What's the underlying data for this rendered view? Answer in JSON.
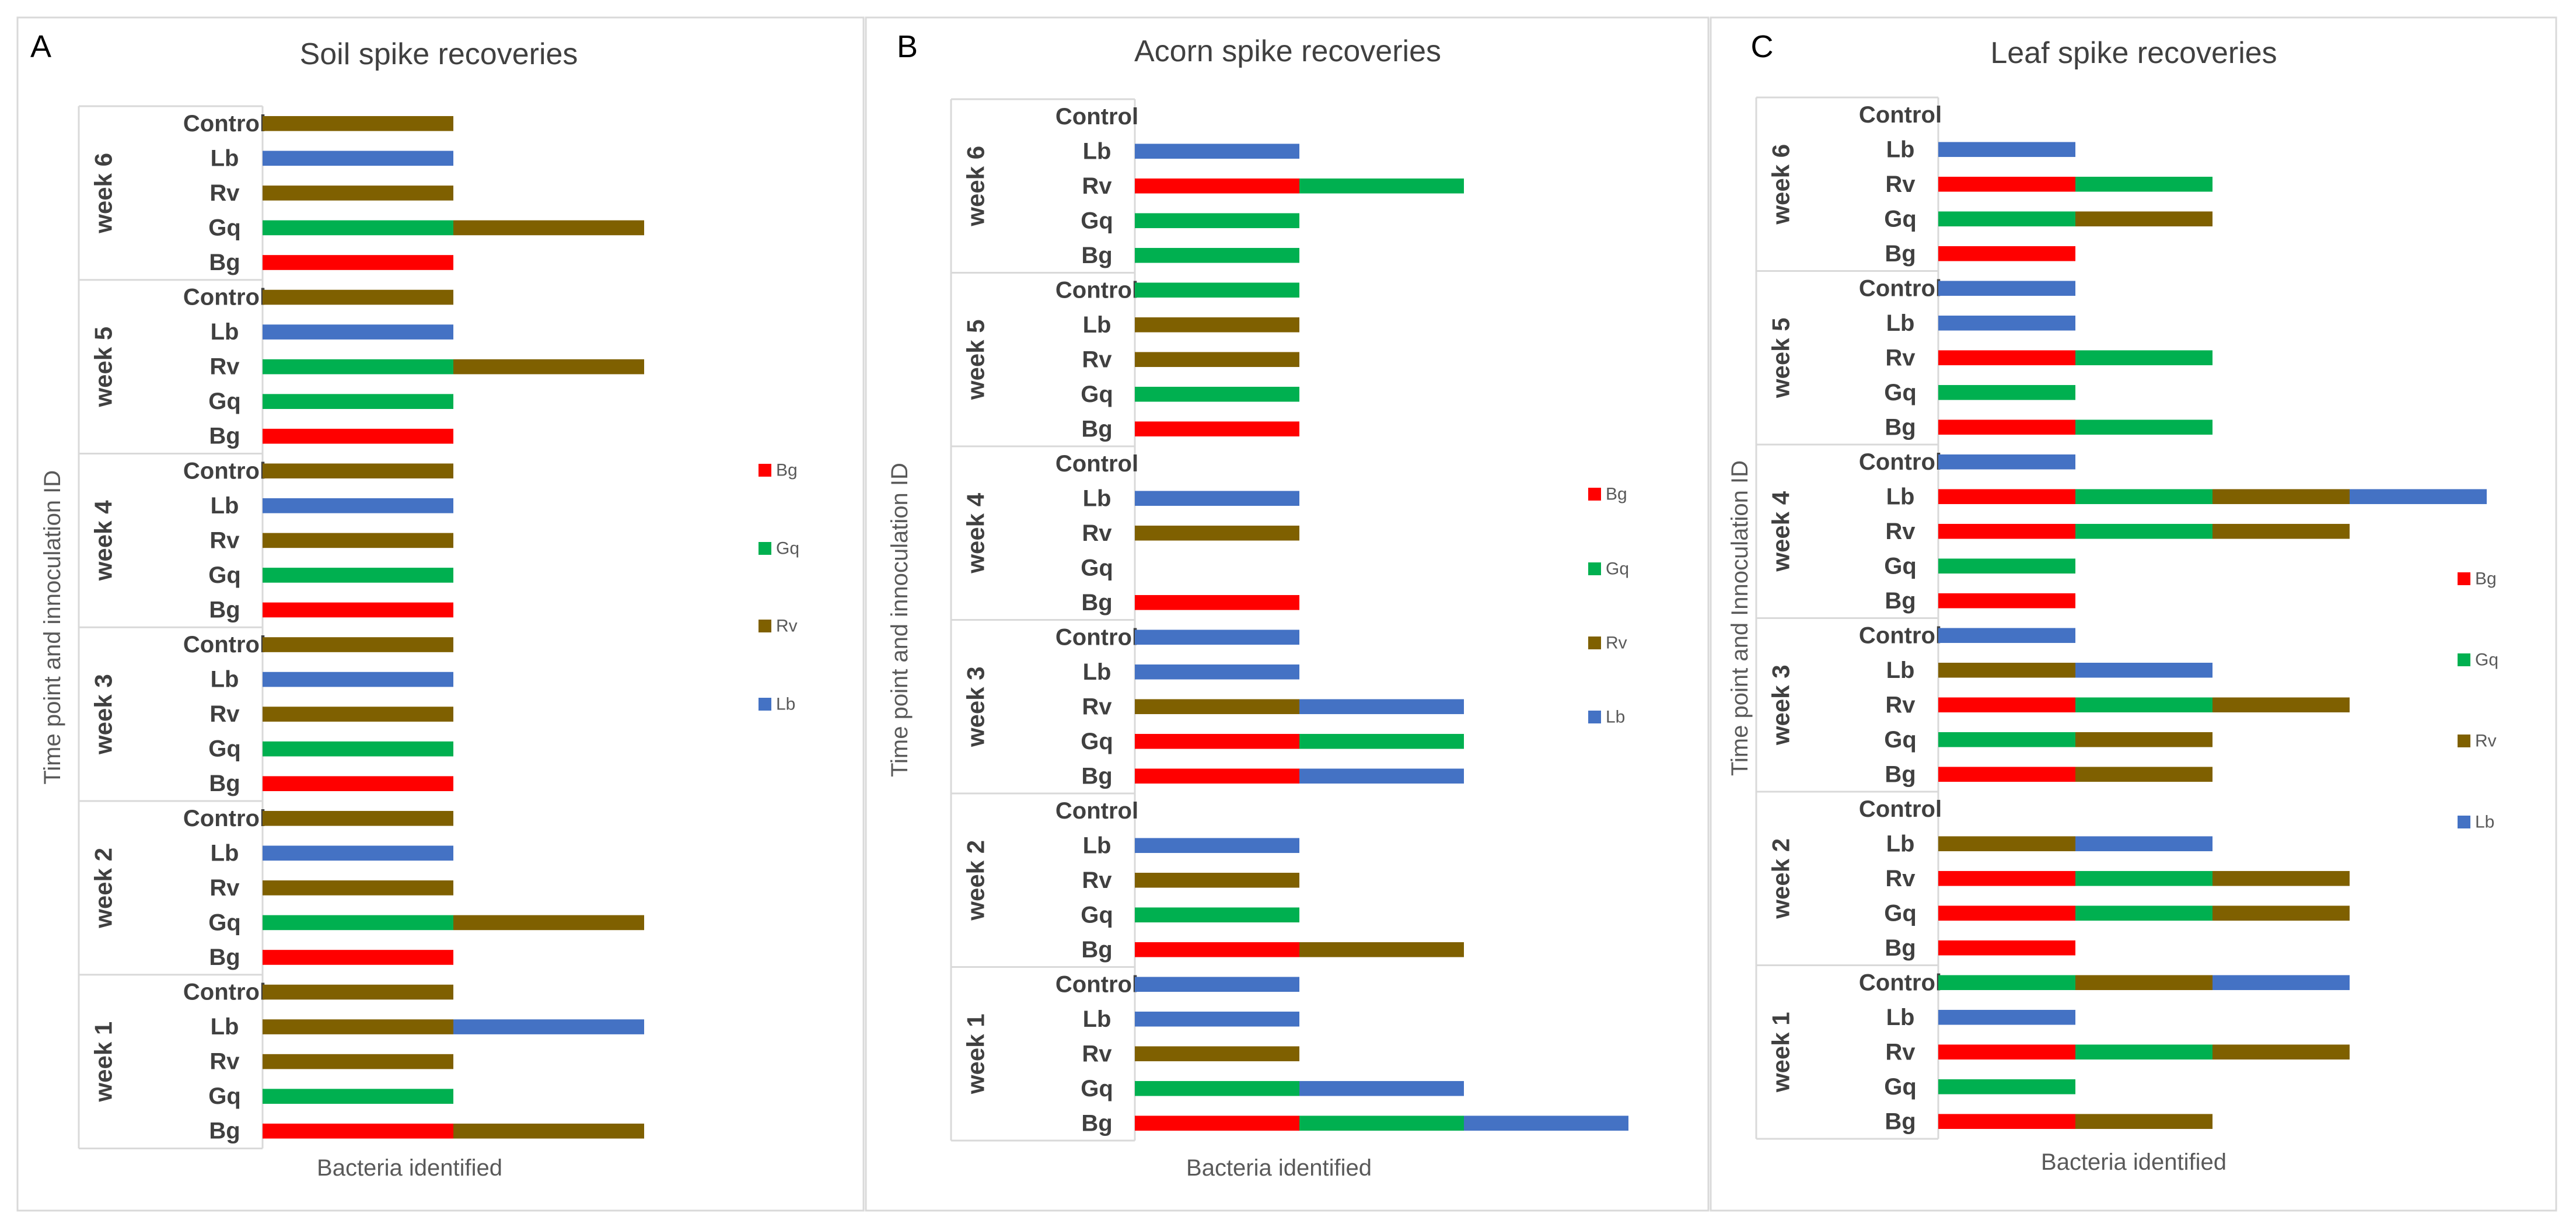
{
  "colors": {
    "Bg": "#ff0000",
    "Gq": "#00b050",
    "Rv": "#7f6000",
    "Lb": "#4472c4",
    "text_dark": "#404040",
    "text_axis": "#595959",
    "frame": "#d9d9d9"
  },
  "chart_data": [
    {
      "type": "bar",
      "orientation": "horizontal-stacked",
      "panel_label": "A",
      "title": "Soil spike recoveries",
      "xlabel": "Bacteria identified",
      "ylabel": "Time point and innoculation ID",
      "legend": [
        "Bg",
        "Gq",
        "Rv",
        "Lb"
      ],
      "legend_placement": "right",
      "xlim": [
        0,
        4
      ],
      "groups": [
        {
          "label": "week 6",
          "rows": [
            {
              "label": "Control",
              "segments": [
                "Rv"
              ]
            },
            {
              "label": "Lb",
              "segments": [
                "Lb"
              ]
            },
            {
              "label": "Rv",
              "segments": [
                "Rv"
              ]
            },
            {
              "label": "Gq",
              "segments": [
                "Gq",
                "Rv"
              ]
            },
            {
              "label": "Bg",
              "segments": [
                "Bg"
              ]
            }
          ]
        },
        {
          "label": "week 5",
          "rows": [
            {
              "label": "Control",
              "segments": [
                "Rv"
              ]
            },
            {
              "label": "Lb",
              "segments": [
                "Lb"
              ]
            },
            {
              "label": "Rv",
              "segments": [
                "Gq",
                "Rv"
              ]
            },
            {
              "label": "Gq",
              "segments": [
                "Gq"
              ]
            },
            {
              "label": "Bg",
              "segments": [
                "Bg"
              ]
            }
          ]
        },
        {
          "label": "week 4",
          "rows": [
            {
              "label": "Control",
              "segments": [
                "Rv"
              ]
            },
            {
              "label": "Lb",
              "segments": [
                "Lb"
              ]
            },
            {
              "label": "Rv",
              "segments": [
                "Rv"
              ]
            },
            {
              "label": "Gq",
              "segments": [
                "Gq"
              ]
            },
            {
              "label": "Bg",
              "segments": [
                "Bg"
              ]
            }
          ]
        },
        {
          "label": "week 3",
          "rows": [
            {
              "label": "Control",
              "segments": [
                "Rv"
              ]
            },
            {
              "label": "Lb",
              "segments": [
                "Lb"
              ]
            },
            {
              "label": "Rv",
              "segments": [
                "Rv"
              ]
            },
            {
              "label": "Gq",
              "segments": [
                "Gq"
              ]
            },
            {
              "label": "Bg",
              "segments": [
                "Bg"
              ]
            }
          ]
        },
        {
          "label": "week 2",
          "rows": [
            {
              "label": "Control",
              "segments": [
                "Rv"
              ]
            },
            {
              "label": "Lb",
              "segments": [
                "Lb"
              ]
            },
            {
              "label": "Rv",
              "segments": [
                "Rv"
              ]
            },
            {
              "label": "Gq",
              "segments": [
                "Gq",
                "Rv"
              ]
            },
            {
              "label": "Bg",
              "segments": [
                "Bg"
              ]
            }
          ]
        },
        {
          "label": "week 1",
          "rows": [
            {
              "label": "Control",
              "segments": [
                "Rv"
              ]
            },
            {
              "label": "Lb",
              "segments": [
                "Rv",
                "Lb"
              ]
            },
            {
              "label": "Rv",
              "segments": [
                "Rv"
              ]
            },
            {
              "label": "Gq",
              "segments": [
                "Gq"
              ]
            },
            {
              "label": "Bg",
              "segments": [
                "Bg",
                "Rv"
              ]
            }
          ]
        }
      ]
    },
    {
      "type": "bar",
      "orientation": "horizontal-stacked",
      "panel_label": "B",
      "title": "Acorn spike recoveries",
      "xlabel": "Bacteria identified",
      "ylabel": "Time point and innoculation ID",
      "legend": [
        "Bg",
        "Gq",
        "Rv",
        "Lb"
      ],
      "legend_placement": "right",
      "xlim": [
        0,
        4
      ],
      "groups": [
        {
          "label": "week 6",
          "rows": [
            {
              "label": "Control",
              "segments": []
            },
            {
              "label": "Lb",
              "segments": [
                "Lb"
              ]
            },
            {
              "label": "Rv",
              "segments": [
                "Bg",
                "Gq"
              ]
            },
            {
              "label": "Gq",
              "segments": [
                "Gq"
              ]
            },
            {
              "label": "Bg",
              "segments": [
                "Gq"
              ]
            }
          ]
        },
        {
          "label": "week 5",
          "rows": [
            {
              "label": "Control",
              "segments": [
                "Gq"
              ]
            },
            {
              "label": "Lb",
              "segments": [
                "Rv"
              ]
            },
            {
              "label": "Rv",
              "segments": [
                "Rv"
              ]
            },
            {
              "label": "Gq",
              "segments": [
                "Gq"
              ]
            },
            {
              "label": "Bg",
              "segments": [
                "Bg"
              ]
            }
          ]
        },
        {
          "label": "week 4",
          "rows": [
            {
              "label": "Control",
              "segments": []
            },
            {
              "label": "Lb",
              "segments": [
                "Lb"
              ]
            },
            {
              "label": "Rv",
              "segments": [
                "Rv"
              ]
            },
            {
              "label": "Gq",
              "segments": []
            },
            {
              "label": "Bg",
              "segments": [
                "Bg"
              ]
            }
          ]
        },
        {
          "label": "week 3",
          "rows": [
            {
              "label": "Control",
              "segments": [
                "Lb"
              ]
            },
            {
              "label": "Lb",
              "segments": [
                "Lb"
              ]
            },
            {
              "label": "Rv",
              "segments": [
                "Rv",
                "Lb"
              ]
            },
            {
              "label": "Gq",
              "segments": [
                "Bg",
                "Gq"
              ]
            },
            {
              "label": "Bg",
              "segments": [
                "Bg",
                "Lb"
              ]
            }
          ]
        },
        {
          "label": "week 2",
          "rows": [
            {
              "label": "Control",
              "segments": []
            },
            {
              "label": "Lb",
              "segments": [
                "Lb"
              ]
            },
            {
              "label": "Rv",
              "segments": [
                "Rv"
              ]
            },
            {
              "label": "Gq",
              "segments": [
                "Gq"
              ]
            },
            {
              "label": "Bg",
              "segments": [
                "Bg",
                "Rv"
              ]
            }
          ]
        },
        {
          "label": "week 1",
          "rows": [
            {
              "label": "Control",
              "segments": [
                "Lb"
              ]
            },
            {
              "label": "Lb",
              "segments": [
                "Lb"
              ]
            },
            {
              "label": "Rv",
              "segments": [
                "Rv"
              ]
            },
            {
              "label": "Gq",
              "segments": [
                "Gq",
                "Lb"
              ]
            },
            {
              "label": "Bg",
              "segments": [
                "Bg",
                "Gq",
                "Lb"
              ]
            }
          ]
        }
      ]
    },
    {
      "type": "bar",
      "orientation": "horizontal-stacked",
      "panel_label": "C",
      "title": "Leaf spike recoveries",
      "xlabel": "Bacteria identified",
      "ylabel": "Time point and Innoculation ID",
      "legend": [
        "Bg",
        "Gq",
        "Rv",
        "Lb"
      ],
      "legend_placement": "right",
      "xlim": [
        0,
        4
      ],
      "groups": [
        {
          "label": "week 6",
          "rows": [
            {
              "label": "Control",
              "segments": []
            },
            {
              "label": "Lb",
              "segments": [
                "Lb"
              ]
            },
            {
              "label": "Rv",
              "segments": [
                "Bg",
                "Gq"
              ]
            },
            {
              "label": "Gq",
              "segments": [
                "Gq",
                "Rv"
              ]
            },
            {
              "label": "Bg",
              "segments": [
                "Bg"
              ]
            }
          ]
        },
        {
          "label": "week 5",
          "rows": [
            {
              "label": "Control",
              "segments": [
                "Lb"
              ]
            },
            {
              "label": "Lb",
              "segments": [
                "Lb"
              ]
            },
            {
              "label": "Rv",
              "segments": [
                "Bg",
                "Gq"
              ]
            },
            {
              "label": "Gq",
              "segments": [
                "Gq"
              ]
            },
            {
              "label": "Bg",
              "segments": [
                "Bg",
                "Gq"
              ]
            }
          ]
        },
        {
          "label": "week 4",
          "rows": [
            {
              "label": "Control",
              "segments": [
                "Lb"
              ]
            },
            {
              "label": "Lb",
              "segments": [
                "Bg",
                "Gq",
                "Rv",
                "Lb"
              ]
            },
            {
              "label": "Rv",
              "segments": [
                "Bg",
                "Gq",
                "Rv"
              ]
            },
            {
              "label": "Gq",
              "segments": [
                "Gq"
              ]
            },
            {
              "label": "Bg",
              "segments": [
                "Bg"
              ]
            }
          ]
        },
        {
          "label": "week 3",
          "rows": [
            {
              "label": "Control",
              "segments": [
                "Lb"
              ]
            },
            {
              "label": "Lb",
              "segments": [
                "Rv",
                "Lb"
              ]
            },
            {
              "label": "Rv",
              "segments": [
                "Bg",
                "Gq",
                "Rv"
              ]
            },
            {
              "label": "Gq",
              "segments": [
                "Gq",
                "Rv"
              ]
            },
            {
              "label": "Bg",
              "segments": [
                "Bg",
                "Rv"
              ]
            }
          ]
        },
        {
          "label": "week 2",
          "rows": [
            {
              "label": "Control",
              "segments": []
            },
            {
              "label": "Lb",
              "segments": [
                "Rv",
                "Lb"
              ]
            },
            {
              "label": "Rv",
              "segments": [
                "Bg",
                "Gq",
                "Rv"
              ]
            },
            {
              "label": "Gq",
              "segments": [
                "Bg",
                "Gq",
                "Rv"
              ]
            },
            {
              "label": "Bg",
              "segments": [
                "Bg"
              ]
            }
          ]
        },
        {
          "label": "week 1",
          "rows": [
            {
              "label": "Control",
              "segments": [
                "Gq",
                "Rv",
                "Lb"
              ]
            },
            {
              "label": "Lb",
              "segments": [
                "Lb"
              ]
            },
            {
              "label": "Rv",
              "segments": [
                "Bg",
                "Gq",
                "Rv"
              ]
            },
            {
              "label": "Gq",
              "segments": [
                "Gq"
              ]
            },
            {
              "label": "Bg",
              "segments": [
                "Bg",
                "Rv"
              ]
            }
          ]
        }
      ]
    }
  ]
}
